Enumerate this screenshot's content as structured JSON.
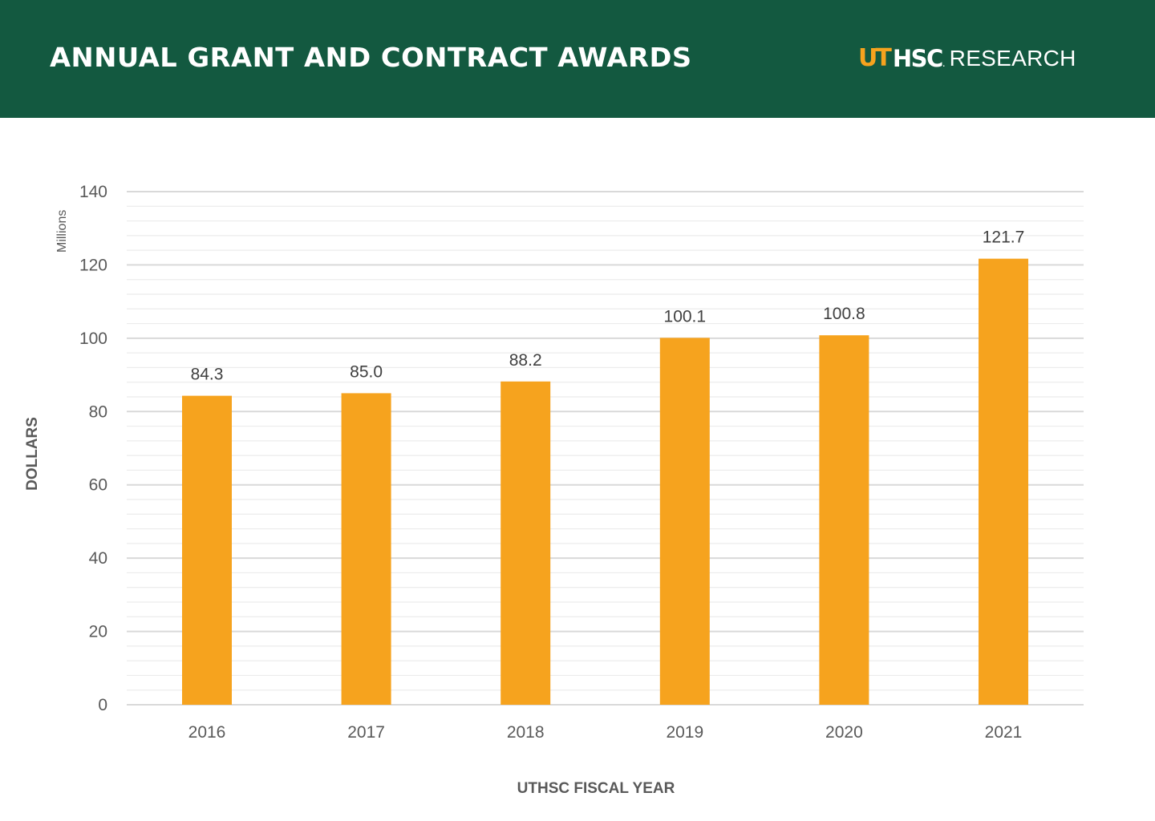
{
  "header": {
    "title": "ANNUAL GRANT AND CONTRACT AWARDS",
    "logo_ut": "UT",
    "logo_hsc": "HSC",
    "logo_dot": ".",
    "logo_research": "RESEARCH",
    "background_color": "#135940",
    "accent_color": "#f6a31e"
  },
  "chart_data": {
    "type": "bar",
    "title": "ANNUAL GRANT AND CONTRACT AWARDS",
    "categories": [
      "2016",
      "2017",
      "2018",
      "2019",
      "2020",
      "2021"
    ],
    "values": [
      84.3,
      85.0,
      88.2,
      100.1,
      100.8,
      121.7
    ],
    "data_labels": [
      "84.3",
      "85.0",
      "88.2",
      "100.1",
      "100.8",
      "121.7"
    ],
    "xlabel": "UTHSC FISCAL YEAR",
    "ylabel": "DOLLARS",
    "y_units_label": "Millions",
    "ylim": [
      0,
      140
    ],
    "y_ticks": [
      0,
      20,
      40,
      60,
      80,
      100,
      120,
      140
    ],
    "y_minor_step": 4,
    "grid": true,
    "legend": "none",
    "bar_color": "#f6a31e",
    "gridline_color": "#d9d9d9"
  }
}
